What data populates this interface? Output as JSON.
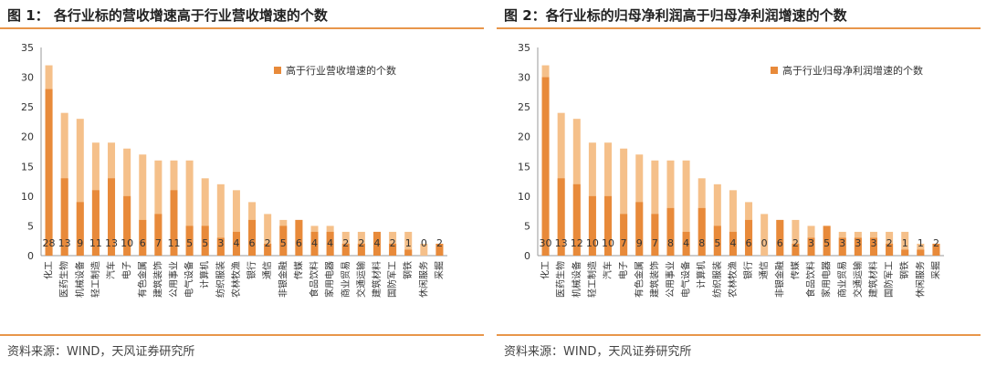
{
  "charts": [
    {
      "title": "图 1：  各行业标的营收增速高于行业营收增速的个数",
      "source": "资料来源：WIND，天风证券研究所",
      "legend": "高于行业营收增速的个数",
      "colors": {
        "total": "#f5c08a",
        "highlight": "#e88a3a"
      }
    },
    {
      "title": "图 2：各行业标的归母净利润高于归母净利润增速的个数",
      "source": "资料来源：WIND，天风证券研究所",
      "legend": "高于行业归母净利润增速的个数",
      "colors": {
        "total": "#f5c08a",
        "highlight": "#e88a3a"
      }
    }
  ],
  "chart_data": [
    {
      "type": "bar",
      "title": "各行业标的营收增速高于行业营收增速的个数",
      "categories": [
        "化工",
        "医药生物",
        "机械设备",
        "轻工制造",
        "汽车",
        "电子",
        "有色金属",
        "建筑装饰",
        "公用事业",
        "电气设备",
        "计算机",
        "纺织服装",
        "农林牧渔",
        "银行",
        "通信",
        "非银金融",
        "传媒",
        "食品饮料",
        "家用电器",
        "商业贸易",
        "交通运输",
        "建筑材料",
        "国防军工",
        "钢铁",
        "休闲服务",
        "采掘"
      ],
      "series": [
        {
          "values": [
            32,
            24,
            23,
            19,
            19,
            18,
            17,
            16,
            16,
            16,
            13,
            12,
            11,
            9,
            7,
            6,
            6,
            5,
            5,
            4,
            4,
            4,
            4,
            4,
            2,
            2
          ]
        },
        {
          "name": "高于行业营收增速的个数",
          "values": [
            28,
            13,
            9,
            11,
            13,
            10,
            6,
            7,
            11,
            5,
            5,
            3,
            4,
            6,
            2,
            5,
            6,
            4,
            4,
            2,
            2,
            4,
            2,
            1,
            0,
            2
          ]
        }
      ],
      "ylim": [
        0,
        35
      ],
      "yticks": [
        0,
        5,
        10,
        15,
        20,
        25,
        30,
        35
      ],
      "legend_position": "top-right"
    },
    {
      "type": "bar",
      "title": "各行业标的归母净利润高于归母净利润增速的个数",
      "categories": [
        "化工",
        "医药生物",
        "机械设备",
        "轻工制造",
        "汽车",
        "电子",
        "有色金属",
        "建筑装饰",
        "公用事业",
        "电气设备",
        "计算机",
        "纺织服装",
        "农林牧渔",
        "银行",
        "通信",
        "非银金融",
        "传媒",
        "食品饮料",
        "家用电器",
        "商业贸易",
        "交通运输",
        "建筑材料",
        "国防军工",
        "钢铁",
        "休闲服务",
        "采掘"
      ],
      "series": [
        {
          "values": [
            32,
            24,
            23,
            19,
            19,
            18,
            17,
            16,
            16,
            16,
            13,
            12,
            11,
            9,
            7,
            6,
            6,
            5,
            5,
            4,
            4,
            4,
            4,
            4,
            2,
            2
          ]
        },
        {
          "name": "高于行业归母净利润增速的个数",
          "values": [
            30,
            13,
            12,
            10,
            10,
            7,
            9,
            7,
            8,
            4,
            8,
            5,
            4,
            6,
            0,
            6,
            2,
            3,
            5,
            3,
            3,
            3,
            2,
            1,
            1,
            2
          ]
        }
      ],
      "ylim": [
        0,
        35
      ],
      "yticks": [
        0,
        5,
        10,
        15,
        20,
        25,
        30,
        35
      ],
      "legend_position": "top-right"
    }
  ]
}
